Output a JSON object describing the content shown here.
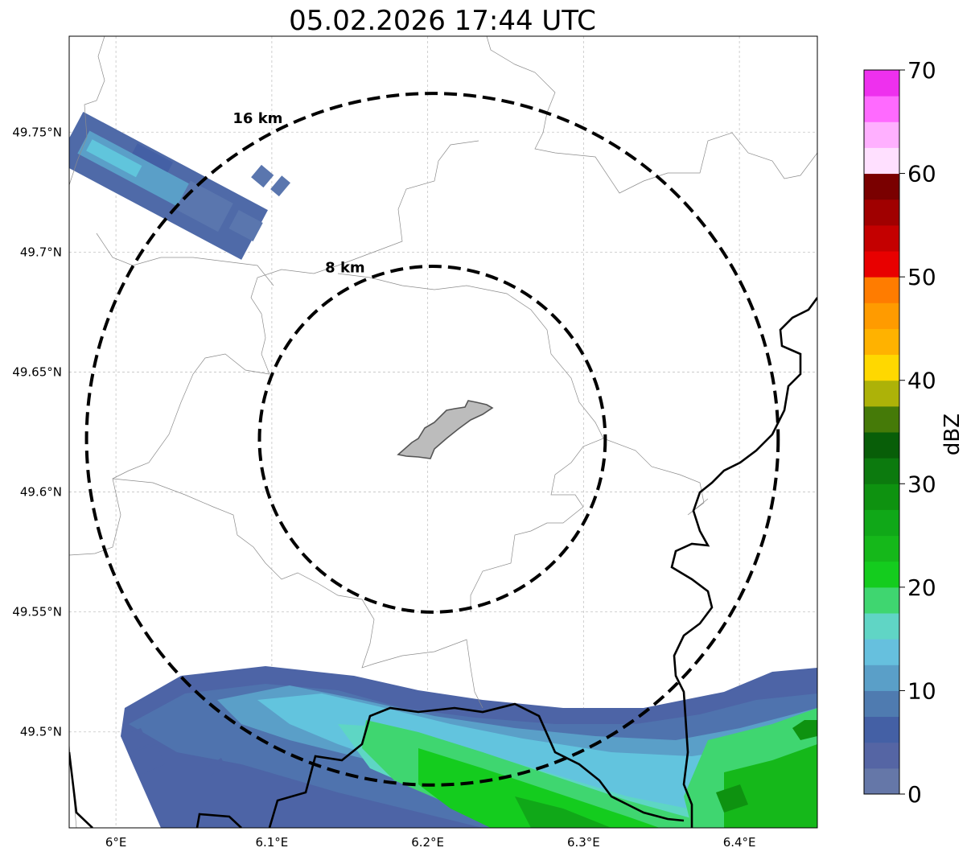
{
  "title": "05.02.2026 17:44 UTC",
  "map": {
    "lon_range": [
      5.97,
      6.45
    ],
    "lat_range": [
      49.46,
      49.79
    ],
    "gridlines": true,
    "lon_ticks": [
      {
        "value": 6.0,
        "label": "6°E"
      },
      {
        "value": 6.1,
        "label": "6.1°E"
      },
      {
        "value": 6.2,
        "label": "6.2°E"
      },
      {
        "value": 6.3,
        "label": "6.3°E"
      },
      {
        "value": 6.4,
        "label": "6.4°E"
      }
    ],
    "lat_ticks": [
      {
        "value": 49.75,
        "label": "49.75°N"
      },
      {
        "value": 49.7,
        "label": "49.7°N"
      },
      {
        "value": 49.65,
        "label": "49.65°N"
      },
      {
        "value": 49.6,
        "label": "49.6°N"
      },
      {
        "value": 49.55,
        "label": "49.55°N"
      },
      {
        "value": 49.5,
        "label": "49.5°N"
      }
    ],
    "range_rings": [
      {
        "radius_km": 16,
        "label": "16 km"
      },
      {
        "radius_km": 8,
        "label": "8 km"
      }
    ],
    "ring_center": {
      "lon": 6.203,
      "lat": 49.622
    }
  },
  "colorbar": {
    "label": "dBZ",
    "min": 0,
    "max": 70,
    "step": 2.5,
    "tick_values": [
      0,
      10,
      20,
      30,
      40,
      50,
      60,
      70
    ],
    "tick_labels": [
      "0",
      "10",
      "20",
      "30",
      "40",
      "50",
      "60",
      "70"
    ],
    "colors": [
      "#6577a8",
      "#5565a4",
      "#4460a5",
      "#4f7bb0",
      "#5a9fc8",
      "#66c0de",
      "#60d5c5",
      "#3fd670",
      "#14cc1e",
      "#15b81a",
      "#10a818",
      "#0e9210",
      "#0c7a0e",
      "#085e08",
      "#457a08",
      "#adb208",
      "#ffd800",
      "#ffb200",
      "#ff9b00",
      "#ff7c00",
      "#e80000",
      "#c40000",
      "#a00000",
      "#7a0000",
      "#ffe0ff",
      "#ffb0ff",
      "#ff6aff",
      "#ee30ee"
    ]
  },
  "reflectivity_areas": [
    {
      "region": "north-west",
      "dbz_range": [
        2,
        16
      ]
    },
    {
      "region": "south",
      "dbz_range": [
        2,
        28
      ]
    }
  ]
}
